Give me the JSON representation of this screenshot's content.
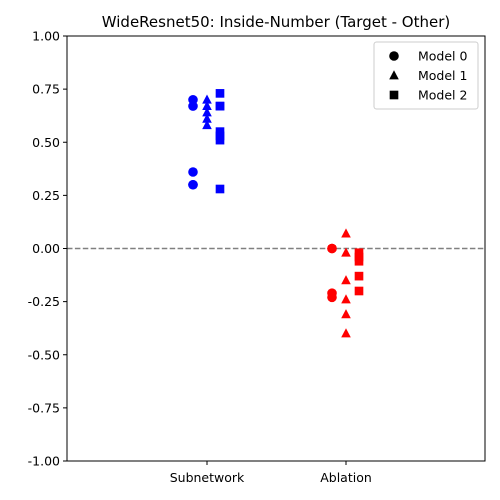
{
  "chart_data": {
    "type": "scatter",
    "title": "WideResnet50: Inside-Number (Target - Other)",
    "xlabel": "",
    "ylabel": "",
    "categories": [
      "Subnetwork",
      "Ablation"
    ],
    "ylim": [
      -1.0,
      1.0
    ],
    "yticks": [
      "-1.00",
      "-0.75",
      "-0.50",
      "-0.25",
      "0.00",
      "0.25",
      "0.50",
      "0.75",
      "1.00"
    ],
    "grid": false,
    "reference_line": {
      "y": 0.0,
      "style": "dashed",
      "color": "#808080"
    },
    "legend": {
      "placement": "top-right",
      "entries": [
        {
          "label": "Model 0",
          "marker": "circle"
        },
        {
          "label": "Model 1",
          "marker": "triangle"
        },
        {
          "label": "Model 2",
          "marker": "square"
        }
      ]
    },
    "category_colors": {
      "Subnetwork": "#0000ff",
      "Ablation": "#ff0000"
    },
    "series": [
      {
        "model": 0,
        "marker": "circle",
        "category": "Subnetwork",
        "values": [
          0.7,
          0.67,
          0.36,
          0.3,
          0.3
        ]
      },
      {
        "model": 1,
        "marker": "triangle",
        "category": "Subnetwork",
        "values": [
          0.7,
          0.67,
          0.64,
          0.61,
          0.58
        ]
      },
      {
        "model": 2,
        "marker": "square",
        "category": "Subnetwork",
        "values": [
          0.73,
          0.67,
          0.67,
          0.55,
          0.53,
          0.51,
          0.28
        ]
      },
      {
        "model": 0,
        "marker": "circle",
        "category": "Ablation",
        "values": [
          0.0,
          0.0,
          -0.21,
          -0.23
        ]
      },
      {
        "model": 1,
        "marker": "triangle",
        "category": "Ablation",
        "values": [
          0.07,
          -0.02,
          -0.15,
          -0.24,
          -0.31,
          -0.4
        ]
      },
      {
        "model": 2,
        "marker": "square",
        "category": "Ablation",
        "values": [
          -0.02,
          -0.04,
          -0.06,
          -0.13,
          -0.2
        ]
      }
    ]
  }
}
